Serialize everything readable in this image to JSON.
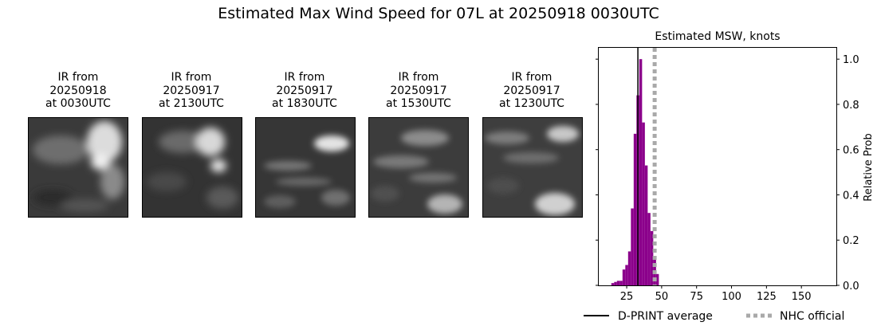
{
  "title": "Estimated Max Wind Speed for 07L at 20250918 0030UTC",
  "panels": [
    {
      "line1": "IR from",
      "line2": "20250918",
      "line3": "at 0030UTC"
    },
    {
      "line1": "IR from",
      "line2": "20250917",
      "line3": "at 2130UTC"
    },
    {
      "line1": "IR from",
      "line2": "20250917",
      "line3": "at 1830UTC"
    },
    {
      "line1": "IR from",
      "line2": "20250917",
      "line3": "at 1530UTC"
    },
    {
      "line1": "IR from",
      "line2": "20250917",
      "line3": "at 1230UTC"
    }
  ],
  "chart_data": {
    "type": "bar",
    "title": "Estimated MSW, knots",
    "xlabel": "",
    "ylabel": "Relative Prob",
    "xlim": [
      5,
      175
    ],
    "ylim": [
      0,
      1.05
    ],
    "xticks": [
      25,
      50,
      75,
      100,
      125,
      150
    ],
    "yticks": [
      0.0,
      0.2,
      0.4,
      0.6,
      0.8,
      1.0
    ],
    "bar_width": 2,
    "bar_color": "#8b008b",
    "x": [
      15,
      17,
      19,
      21,
      23,
      25,
      27,
      29,
      31,
      33,
      35,
      37,
      39,
      41,
      43,
      45,
      47
    ],
    "values": [
      0.01,
      0.015,
      0.02,
      0.02,
      0.07,
      0.09,
      0.15,
      0.34,
      0.67,
      0.84,
      1.0,
      0.72,
      0.53,
      0.32,
      0.24,
      0.12,
      0.05
    ],
    "dprint_average": 33,
    "nhc_official": 45,
    "legend": [
      {
        "label": "D-PRINT average",
        "style": "solid",
        "color": "#000000"
      },
      {
        "label": "NHC official",
        "style": "dotted",
        "color": "#a9a9a9"
      }
    ],
    "legend_placement": "bottom-right"
  }
}
